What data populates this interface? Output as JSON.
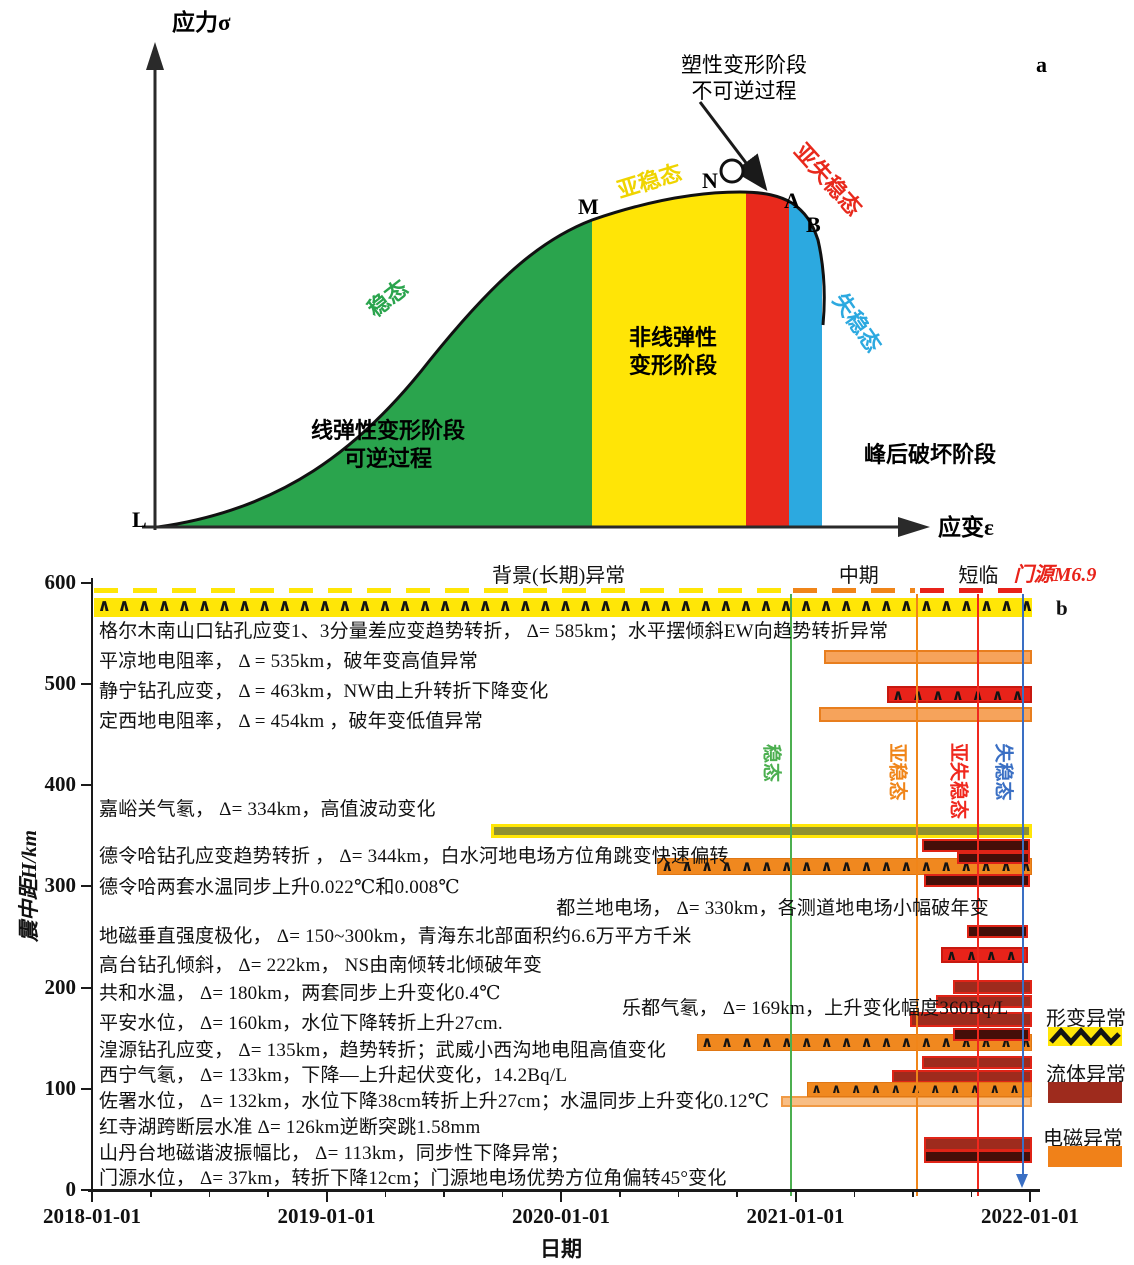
{
  "panel_a": {
    "corner_label": "a",
    "y_axis_label": "应力σ",
    "x_axis_label": "应变ε",
    "origin_label": "L",
    "note_line1": "塑性变形阶段",
    "note_line2": "不可逆过程",
    "point_m": "M",
    "point_n": "N",
    "point_a": "A",
    "point_b": "B",
    "stage_stable": "稳态",
    "stage_meta": "亚稳态",
    "stage_submeta": "亚失稳态",
    "stage_unstable": "失稳态",
    "zone_linear1": "线弹性变形阶段",
    "zone_linear2": "可逆过程",
    "zone_nonlinear1": "非线弹性",
    "zone_nonlinear2": "变形阶段",
    "zone_postpeak": "峰后破坏阶段",
    "colors": {
      "stable": "#2AA44D",
      "meta": "#FFE506",
      "submeta": "#E8291C",
      "unstable": "#2CA9E0"
    }
  },
  "chart_data": {
    "type": "gantt-timeline",
    "corner_label": "b",
    "xlabel": "日期",
    "ylabel": "震中距H/km",
    "x_ticks": [
      "2018-01-01",
      "2019-01-01",
      "2020-01-01",
      "2021-01-01",
      "2022-01-01"
    ],
    "x_tick_years": [
      2018,
      2019,
      2020,
      2021,
      2022
    ],
    "y_ticks": [
      0,
      100,
      200,
      300,
      400,
      500,
      600
    ],
    "x_range_years": [
      2018,
      2022.05
    ],
    "y_range_km": [
      0,
      600
    ],
    "period_bands": [
      {
        "label": "背景(长期)异常",
        "color": "#FFE607",
        "t0": 2018.01,
        "t1": 2020.96,
        "label_t": 2019.99
      },
      {
        "label": "中期",
        "color": "#F08519",
        "t0": 2020.99,
        "t1": 2021.51,
        "label_t": 2021.27
      },
      {
        "label": "短临",
        "color": "#E8231A",
        "t0": 2021.53,
        "t1": 2021.99,
        "label_t": 2021.78
      }
    ],
    "event_label": {
      "text": "门源M6.9",
      "color": "#E8231A",
      "t": 2021.93
    },
    "phase_lines": [
      {
        "label": "稳态",
        "color": "#4CAF50",
        "t": 2020.98,
        "arrow": false
      },
      {
        "label": "亚稳态",
        "color": "#F08519",
        "t": 2021.52,
        "arrow": false
      },
      {
        "label": "亚失稳态",
        "color": "#F0281E",
        "t": 2021.78,
        "arrow": false
      },
      {
        "label": "失稳态",
        "color": "#3A6FC4",
        "t": 2021.97,
        "arrow": true
      }
    ],
    "legend": [
      {
        "label": "形变异常",
        "style": "deform"
      },
      {
        "label": "流体异常",
        "style": "fluid"
      },
      {
        "label": "电磁异常",
        "style": "em"
      }
    ],
    "annotations": [
      {
        "text": "格尔木南山口钻孔应变1、3分量差应变趋势转折， Δ= 585km；水平摆倾斜EW向趋势转折异常",
        "km": 556,
        "t": 2018.03
      },
      {
        "text": "平凉地电阻率， Δ = 535km，破年变高值异常",
        "km": 526,
        "t": 2018.03
      },
      {
        "text": "静宁钻孔应变， Δ = 463km，NW由上升转折下降变化",
        "km": 496,
        "t": 2018.03
      },
      {
        "text": "定西地电阻率， Δ = 454km ，破年变低值异常",
        "km": 467,
        "t": 2018.03
      },
      {
        "text": "嘉峪关气氡， Δ= 334km，高值波动变化",
        "km": 380,
        "t": 2018.03
      },
      {
        "text": "德令哈钻孔应变趋势转折 ， Δ= 344km，白水河地电场方位角跳变快速偏转",
        "km": 333,
        "t": 2018.03
      },
      {
        "text": "德令哈两套水温同步上升0.022℃和0.008℃",
        "km": 302,
        "t": 2018.03
      },
      {
        "text": "都兰地电场， Δ= 330km，各测道地电场小幅破年变",
        "km": 282,
        "t": 2019.98
      },
      {
        "text": "地磁垂直强度极化， Δ= 150~300km，青海东北部面积约6.6万平方千米",
        "km": 254,
        "t": 2018.03
      },
      {
        "text": "高台钻孔倾斜， Δ= 222km， NS由南倾转北倾破年变",
        "km": 225,
        "t": 2018.03
      },
      {
        "text": "共和水温， Δ= 180km，两套同步上升变化0.4℃",
        "km": 198,
        "t": 2018.03
      },
      {
        "text": "乐都气氡， Δ= 169km，上升变化幅度360Bq/L",
        "km": 183,
        "t": 2020.26
      },
      {
        "text": "平安水位， Δ= 160km，水位下降转折上升27cm.",
        "km": 168,
        "t": 2018.03
      },
      {
        "text": "湟源钻孔应变， Δ= 135km，趋势转折；武威小西沟地电阻高值变化",
        "km": 141,
        "t": 2018.03
      },
      {
        "text": "西宁气氡， Δ= 133km，下降—上升起伏变化，14.2Bq/L",
        "km": 117,
        "t": 2018.03
      },
      {
        "text": "佐署水位， Δ= 132km，水位下降38cm转折上升27cm；水温同步上升变化0.12℃",
        "km": 91,
        "t": 2018.03
      },
      {
        "text": "红寺湖跨断层水准 Δ= 126km逆断突跳1.58mm",
        "km": 65,
        "t": 2018.03
      },
      {
        "text": "山丹台地磁谐波振幅比， Δ= 113km，同步性下降异常；",
        "km": 40,
        "t": 2018.03
      },
      {
        "text": "门源水位， Δ= 37km，转折下降12cm；门源地电场优势方位角偏转45°变化",
        "km": 15,
        "t": 2018.03
      }
    ],
    "bars": [
      {
        "style": "deform-chev",
        "t0": 2018.01,
        "t1": 2022.01,
        "km": 576,
        "h": 19
      },
      {
        "style": "em",
        "t0": 2021.12,
        "t1": 2022.01,
        "km": 527,
        "h": 14
      },
      {
        "style": "red-chev",
        "t0": 2021.39,
        "t1": 2022.01,
        "km": 490,
        "h": 17
      },
      {
        "style": "em",
        "t0": 2021.1,
        "t1": 2022.01,
        "km": 470,
        "h": 15
      },
      {
        "style": "olive",
        "t0": 2019.7,
        "t1": 2022.01,
        "km": 355,
        "h": 14
      },
      {
        "style": "em-chev",
        "t0": 2020.41,
        "t1": 2022.01,
        "km": 320,
        "h": 17
      },
      {
        "style": "maroon",
        "t0": 2021.54,
        "t1": 2022.0,
        "km": 341,
        "h": 13
      },
      {
        "style": "maroon",
        "t0": 2021.69,
        "t1": 2022.0,
        "km": 328,
        "h": 12
      },
      {
        "style": "maroon",
        "t0": 2021.55,
        "t1": 2022.0,
        "km": 306,
        "h": 13
      },
      {
        "style": "maroon",
        "t0": 2021.73,
        "t1": 2021.99,
        "km": 256,
        "h": 13
      },
      {
        "style": "red-chev",
        "t0": 2021.62,
        "t1": 2021.99,
        "km": 232,
        "h": 16
      },
      {
        "style": "fluid",
        "t0": 2021.67,
        "t1": 2022.01,
        "km": 201,
        "h": 14
      },
      {
        "style": "fluid",
        "t0": 2021.6,
        "t1": 2022.01,
        "km": 186,
        "h": 13
      },
      {
        "style": "fluid",
        "t0": 2021.49,
        "t1": 2022.01,
        "km": 169,
        "h": 15
      },
      {
        "style": "em-chev",
        "t0": 2020.58,
        "t1": 2022.01,
        "km": 146,
        "h": 17
      },
      {
        "style": "maroon",
        "t0": 2021.67,
        "t1": 2022.0,
        "km": 154,
        "h": 13
      },
      {
        "style": "fluid",
        "t0": 2021.54,
        "t1": 2022.01,
        "km": 126,
        "h": 13
      },
      {
        "style": "fluid",
        "t0": 2021.41,
        "t1": 2022.01,
        "km": 112,
        "h": 13
      },
      {
        "style": "em-light",
        "t0": 2020.94,
        "t1": 2022.01,
        "km": 87,
        "h": 11
      },
      {
        "style": "em-chev",
        "t0": 2021.05,
        "t1": 2022.01,
        "km": 99,
        "h": 15
      },
      {
        "style": "fluid",
        "t0": 2021.55,
        "t1": 2022.01,
        "km": 45,
        "h": 14
      },
      {
        "style": "maroon",
        "t0": 2021.55,
        "t1": 2022.01,
        "km": 33,
        "h": 13
      }
    ]
  }
}
